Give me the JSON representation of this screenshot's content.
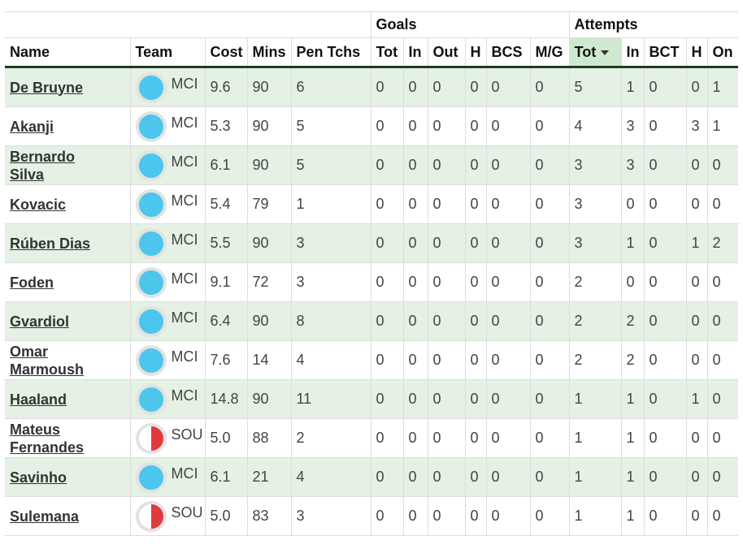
{
  "table": {
    "header_groups": [
      {
        "columns": [
          "Name",
          "Team",
          "Cost",
          "Mins",
          "Pen Tchs"
        ]
      },
      {
        "label": "Goals",
        "columns": [
          "Tot",
          "In",
          "Out",
          "H",
          "BCS",
          "M/G"
        ]
      },
      {
        "label": "Attempts",
        "columns": [
          "Tot",
          "In",
          "BCT",
          "H",
          "On"
        ]
      }
    ],
    "sort": {
      "group": 2,
      "column": 0,
      "order": "descending"
    },
    "rows": [
      {
        "badge": [
          "#4cc6ec"
        ],
        "cells": [
          "De Bruyne",
          "MCI",
          "9.6",
          "90",
          "6",
          "0",
          "0",
          "0",
          "0",
          "0",
          "0",
          "5",
          "1",
          "0",
          "0",
          "1"
        ]
      },
      {
        "badge": [
          "#4cc6ec"
        ],
        "cells": [
          "Akanji",
          "MCI",
          "5.3",
          "90",
          "5",
          "0",
          "0",
          "0",
          "0",
          "0",
          "0",
          "4",
          "3",
          "0",
          "3",
          "1"
        ]
      },
      {
        "badge": [
          "#4cc6ec"
        ],
        "cells": [
          "Bernardo Silva",
          "MCI",
          "6.1",
          "90",
          "5",
          "0",
          "0",
          "0",
          "0",
          "0",
          "0",
          "3",
          "3",
          "0",
          "0",
          "0"
        ]
      },
      {
        "badge": [
          "#4cc6ec"
        ],
        "cells": [
          "Kovacic",
          "MCI",
          "5.4",
          "79",
          "1",
          "0",
          "0",
          "0",
          "0",
          "0",
          "0",
          "3",
          "0",
          "0",
          "0",
          "0"
        ]
      },
      {
        "badge": [
          "#4cc6ec"
        ],
        "cells": [
          "Rúben Dias",
          "MCI",
          "5.5",
          "90",
          "3",
          "0",
          "0",
          "0",
          "0",
          "0",
          "0",
          "3",
          "1",
          "0",
          "1",
          "2"
        ]
      },
      {
        "badge": [
          "#4cc6ec"
        ],
        "cells": [
          "Foden",
          "MCI",
          "9.1",
          "72",
          "3",
          "0",
          "0",
          "0",
          "0",
          "0",
          "0",
          "2",
          "0",
          "0",
          "0",
          "0"
        ]
      },
      {
        "badge": [
          "#4cc6ec"
        ],
        "cells": [
          "Gvardiol",
          "MCI",
          "6.4",
          "90",
          "8",
          "0",
          "0",
          "0",
          "0",
          "0",
          "0",
          "2",
          "2",
          "0",
          "0",
          "0"
        ]
      },
      {
        "badge": [
          "#4cc6ec"
        ],
        "cells": [
          "Omar Marmoush",
          "MCI",
          "7.6",
          "14",
          "4",
          "0",
          "0",
          "0",
          "0",
          "0",
          "0",
          "2",
          "2",
          "0",
          "0",
          "0"
        ]
      },
      {
        "badge": [
          "#4cc6ec"
        ],
        "cells": [
          "Haaland",
          "MCI",
          "14.8",
          "90",
          "11",
          "0",
          "0",
          "0",
          "0",
          "0",
          "0",
          "1",
          "1",
          "0",
          "1",
          "0"
        ]
      },
      {
        "badge": [
          "#ffffff",
          "#e03a3e"
        ],
        "cells": [
          "Mateus Fernandes",
          "SOU",
          "5.0",
          "88",
          "2",
          "0",
          "0",
          "0",
          "0",
          "0",
          "0",
          "1",
          "1",
          "0",
          "0",
          "0"
        ]
      },
      {
        "badge": [
          "#4cc6ec"
        ],
        "cells": [
          "Savinho",
          "MCI",
          "6.1",
          "21",
          "4",
          "0",
          "0",
          "0",
          "0",
          "0",
          "0",
          "1",
          "1",
          "0",
          "0",
          "0"
        ]
      },
      {
        "badge": [
          "#ffffff",
          "#e03a3e"
        ],
        "cells": [
          "Sulemana",
          "SOU",
          "5.0",
          "83",
          "3",
          "0",
          "0",
          "0",
          "0",
          "0",
          "0",
          "1",
          "1",
          "0",
          "0",
          "0"
        ]
      }
    ]
  }
}
